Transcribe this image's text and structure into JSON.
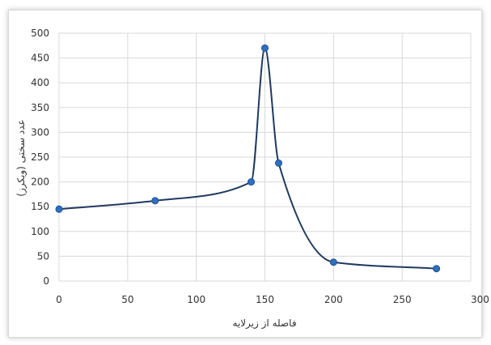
{
  "chart_data": {
    "type": "line",
    "xlabel": "فاصله از زیرلایه",
    "ylabel": "عدد سختی (ویکرز)",
    "x": [
      0,
      70,
      140,
      150,
      160,
      200,
      275
    ],
    "y": [
      145,
      162,
      200,
      470,
      238,
      38,
      25
    ],
    "xlim": [
      0,
      300
    ],
    "ylim": [
      0,
      500
    ],
    "xticks": [
      "0",
      "50",
      "100",
      "150",
      "200",
      "250",
      "300"
    ],
    "yticks": [
      "0",
      "50",
      "100",
      "150",
      "200",
      "250",
      "300",
      "350",
      "400",
      "450",
      "500"
    ],
    "grid": true,
    "smooth": true,
    "colors": {
      "line": "#1f3a5f",
      "marker": "#2e6fc0",
      "grid": "#d9d9d9"
    }
  }
}
